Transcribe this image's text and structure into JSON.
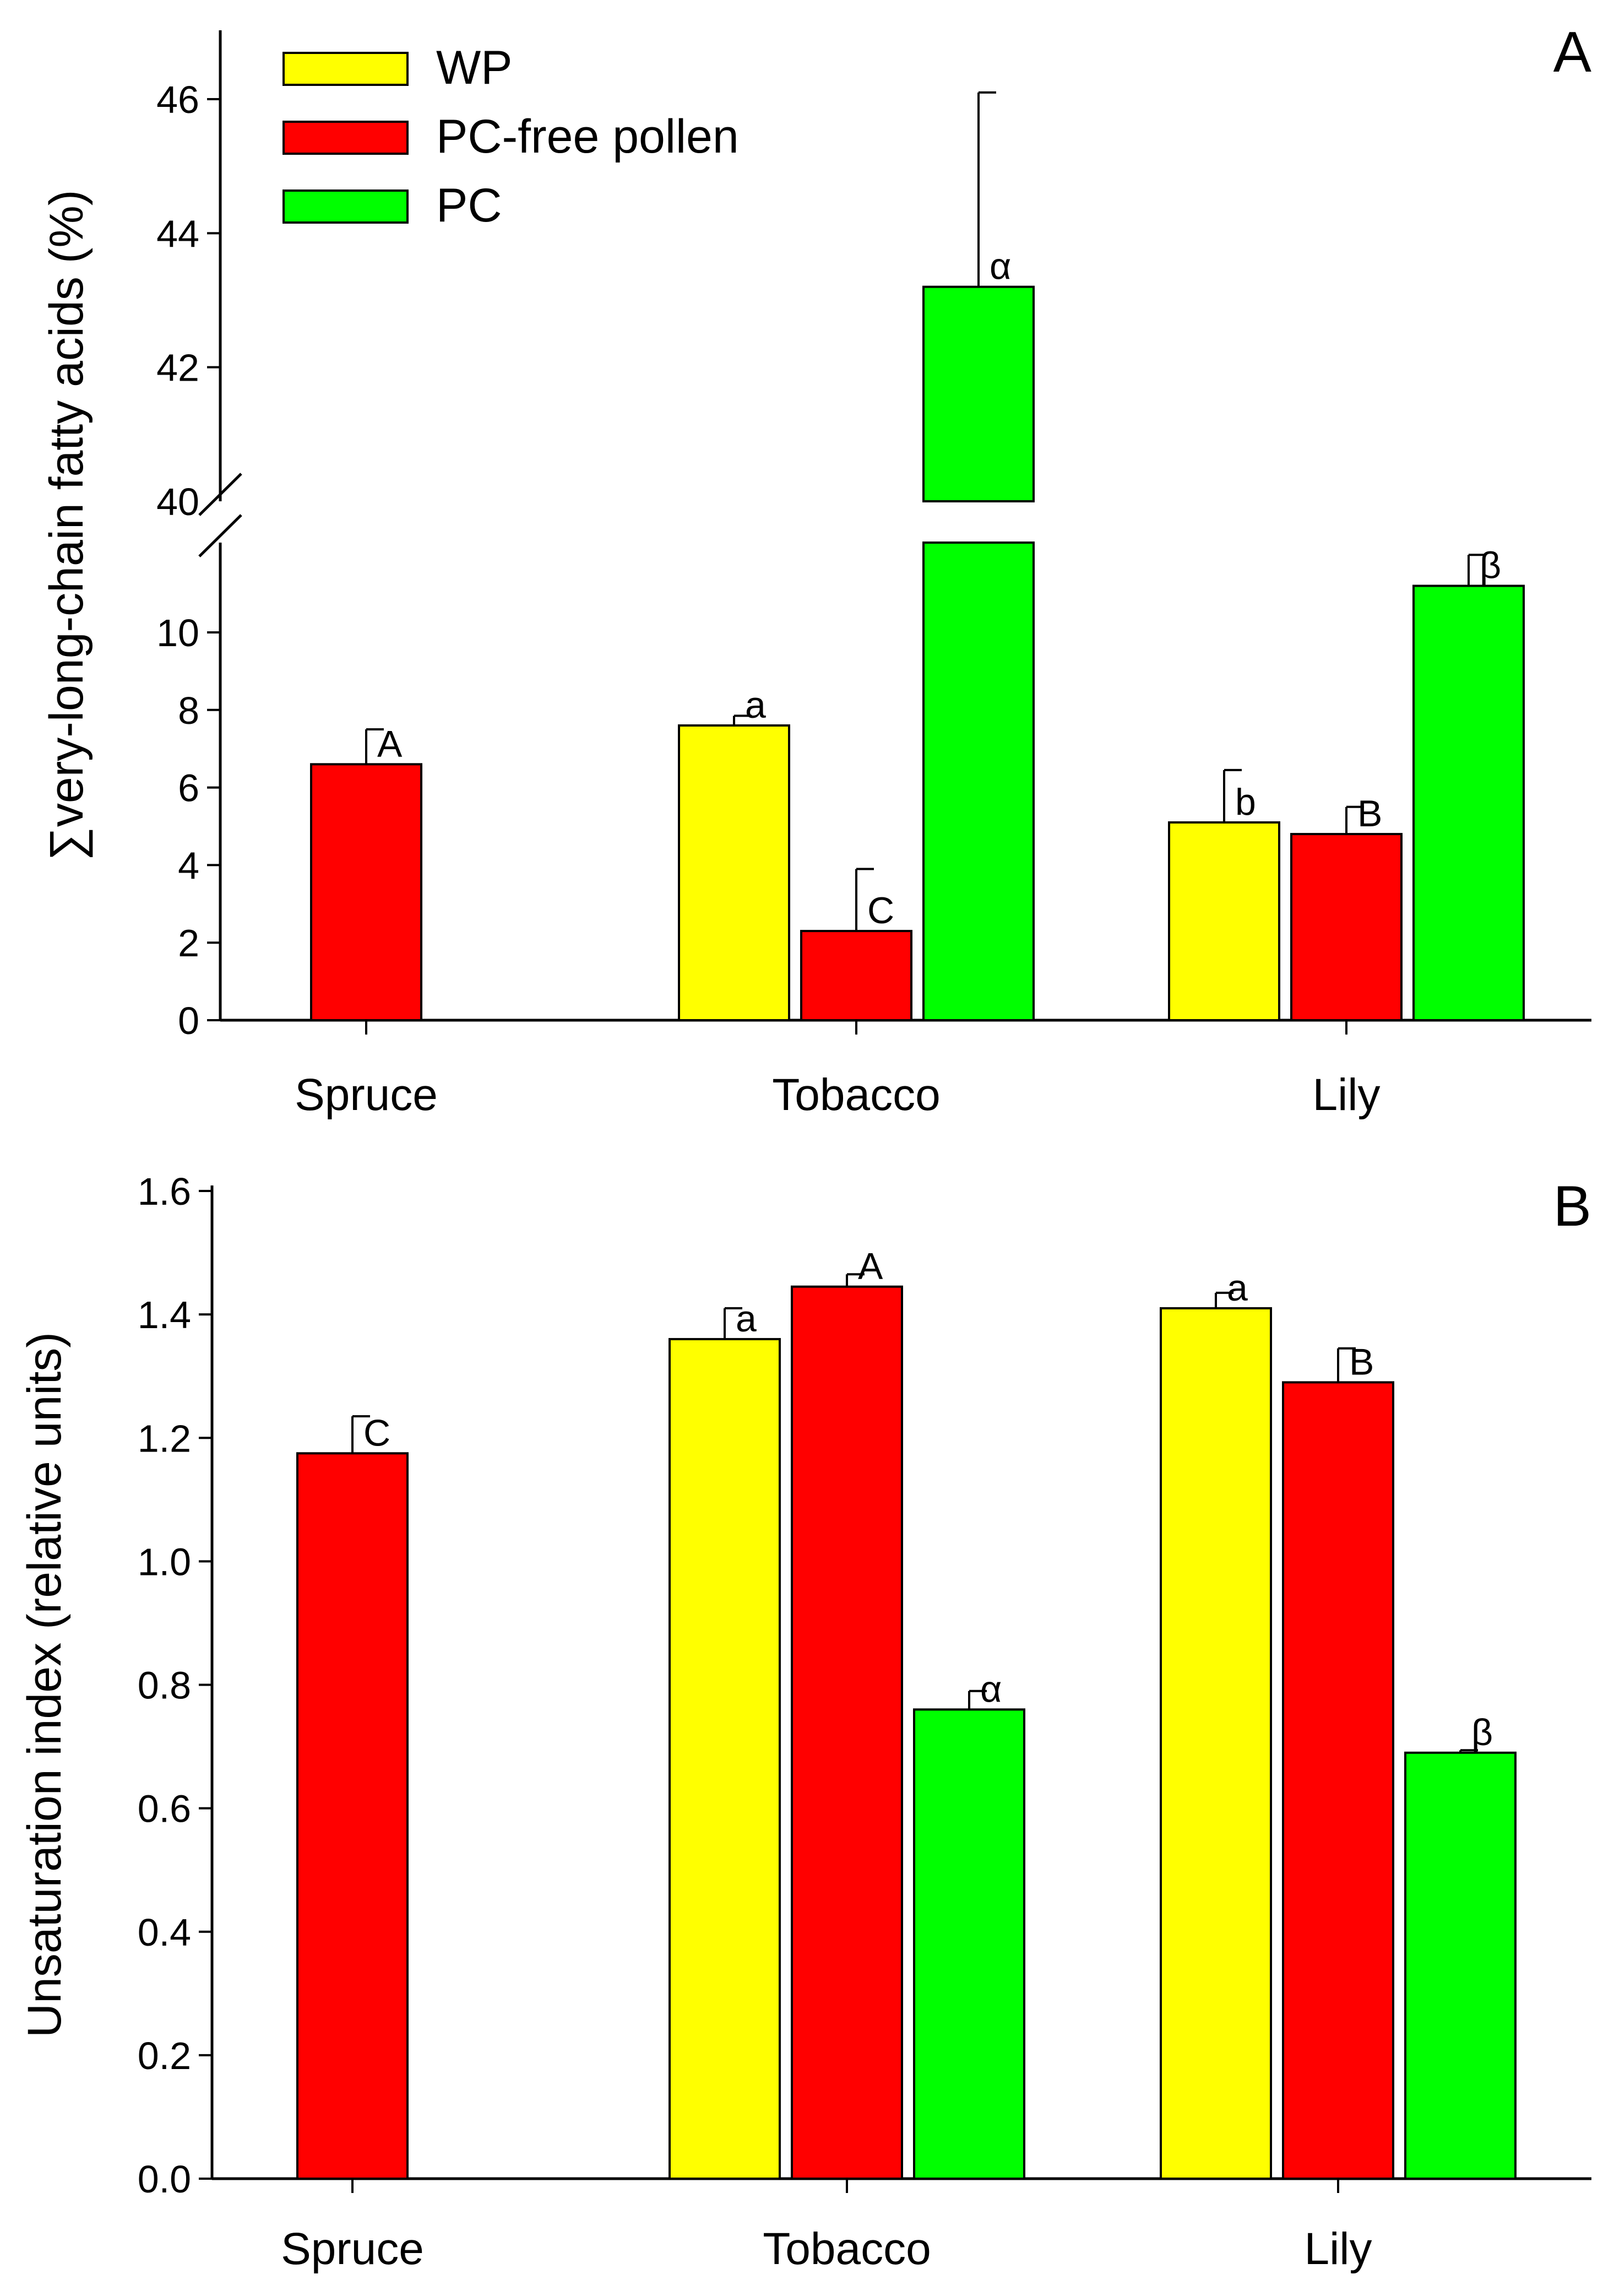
{
  "chart_data": [
    {
      "type": "bar",
      "panel": "A",
      "categories": [
        "Spruce",
        "Tobacco",
        "Lily"
      ],
      "ylabel": "∑very-long-chain fatty acids (%)",
      "xlabel": "",
      "ylim": [
        0,
        47
      ],
      "broken_axis": {
        "lower_range": [
          0,
          12
        ],
        "upper_range": [
          40,
          47
        ]
      },
      "y_ticks_lower": [
        "0",
        "2",
        "4",
        "6",
        "8",
        "10"
      ],
      "y_ticks_upper": [
        "40",
        "42",
        "44",
        "46"
      ],
      "legend": {
        "position": "top-left",
        "entries": [
          {
            "name": "WP",
            "color": "#ffff00"
          },
          {
            "name": "PC-free pollen",
            "color": "#ff0000"
          },
          {
            "name": "PC",
            "color": "#00ff00"
          }
        ]
      },
      "series": [
        {
          "name": "WP",
          "color": "#ffff00",
          "values": [
            null,
            7.6,
            5.1
          ],
          "errors": [
            null,
            0.25,
            1.35
          ],
          "sig": [
            null,
            "a",
            "b"
          ]
        },
        {
          "name": "PC-free pollen",
          "color": "#ff0000",
          "values": [
            6.6,
            2.3,
            4.8
          ],
          "errors": [
            0.9,
            1.6,
            0.7
          ],
          "sig": [
            "A",
            "C",
            "B"
          ]
        },
        {
          "name": "PC",
          "color": "#00ff00",
          "values": [
            null,
            43.2,
            11.2
          ],
          "errors": [
            null,
            2.9,
            0.8
          ],
          "sig": [
            null,
            "α",
            "β"
          ]
        }
      ]
    },
    {
      "type": "bar",
      "panel": "B",
      "categories": [
        "Spruce",
        "Tobacco",
        "Lily"
      ],
      "ylabel": "Unsaturation index (relative units)",
      "xlabel": "",
      "ylim": [
        0,
        1.6
      ],
      "y_ticks": [
        "0.0",
        "0.2",
        "0.4",
        "0.6",
        "0.8",
        "1.0",
        "1.2",
        "1.4",
        "1.6"
      ],
      "series": [
        {
          "name": "WP",
          "color": "#ffff00",
          "values": [
            null,
            1.36,
            1.41
          ],
          "errors": [
            null,
            0.05,
            0.025
          ],
          "sig": [
            null,
            "a",
            "a"
          ]
        },
        {
          "name": "PC-free pollen",
          "color": "#ff0000",
          "values": [
            1.175,
            1.445,
            1.29
          ],
          "errors": [
            0.06,
            0.02,
            0.055
          ],
          "sig": [
            "C",
            "A",
            "B"
          ]
        },
        {
          "name": "PC",
          "color": "#00ff00",
          "values": [
            null,
            0.76,
            0.69
          ],
          "errors": [
            null,
            0.03,
            0.004
          ],
          "sig": [
            null,
            "α",
            "β"
          ]
        }
      ]
    }
  ]
}
